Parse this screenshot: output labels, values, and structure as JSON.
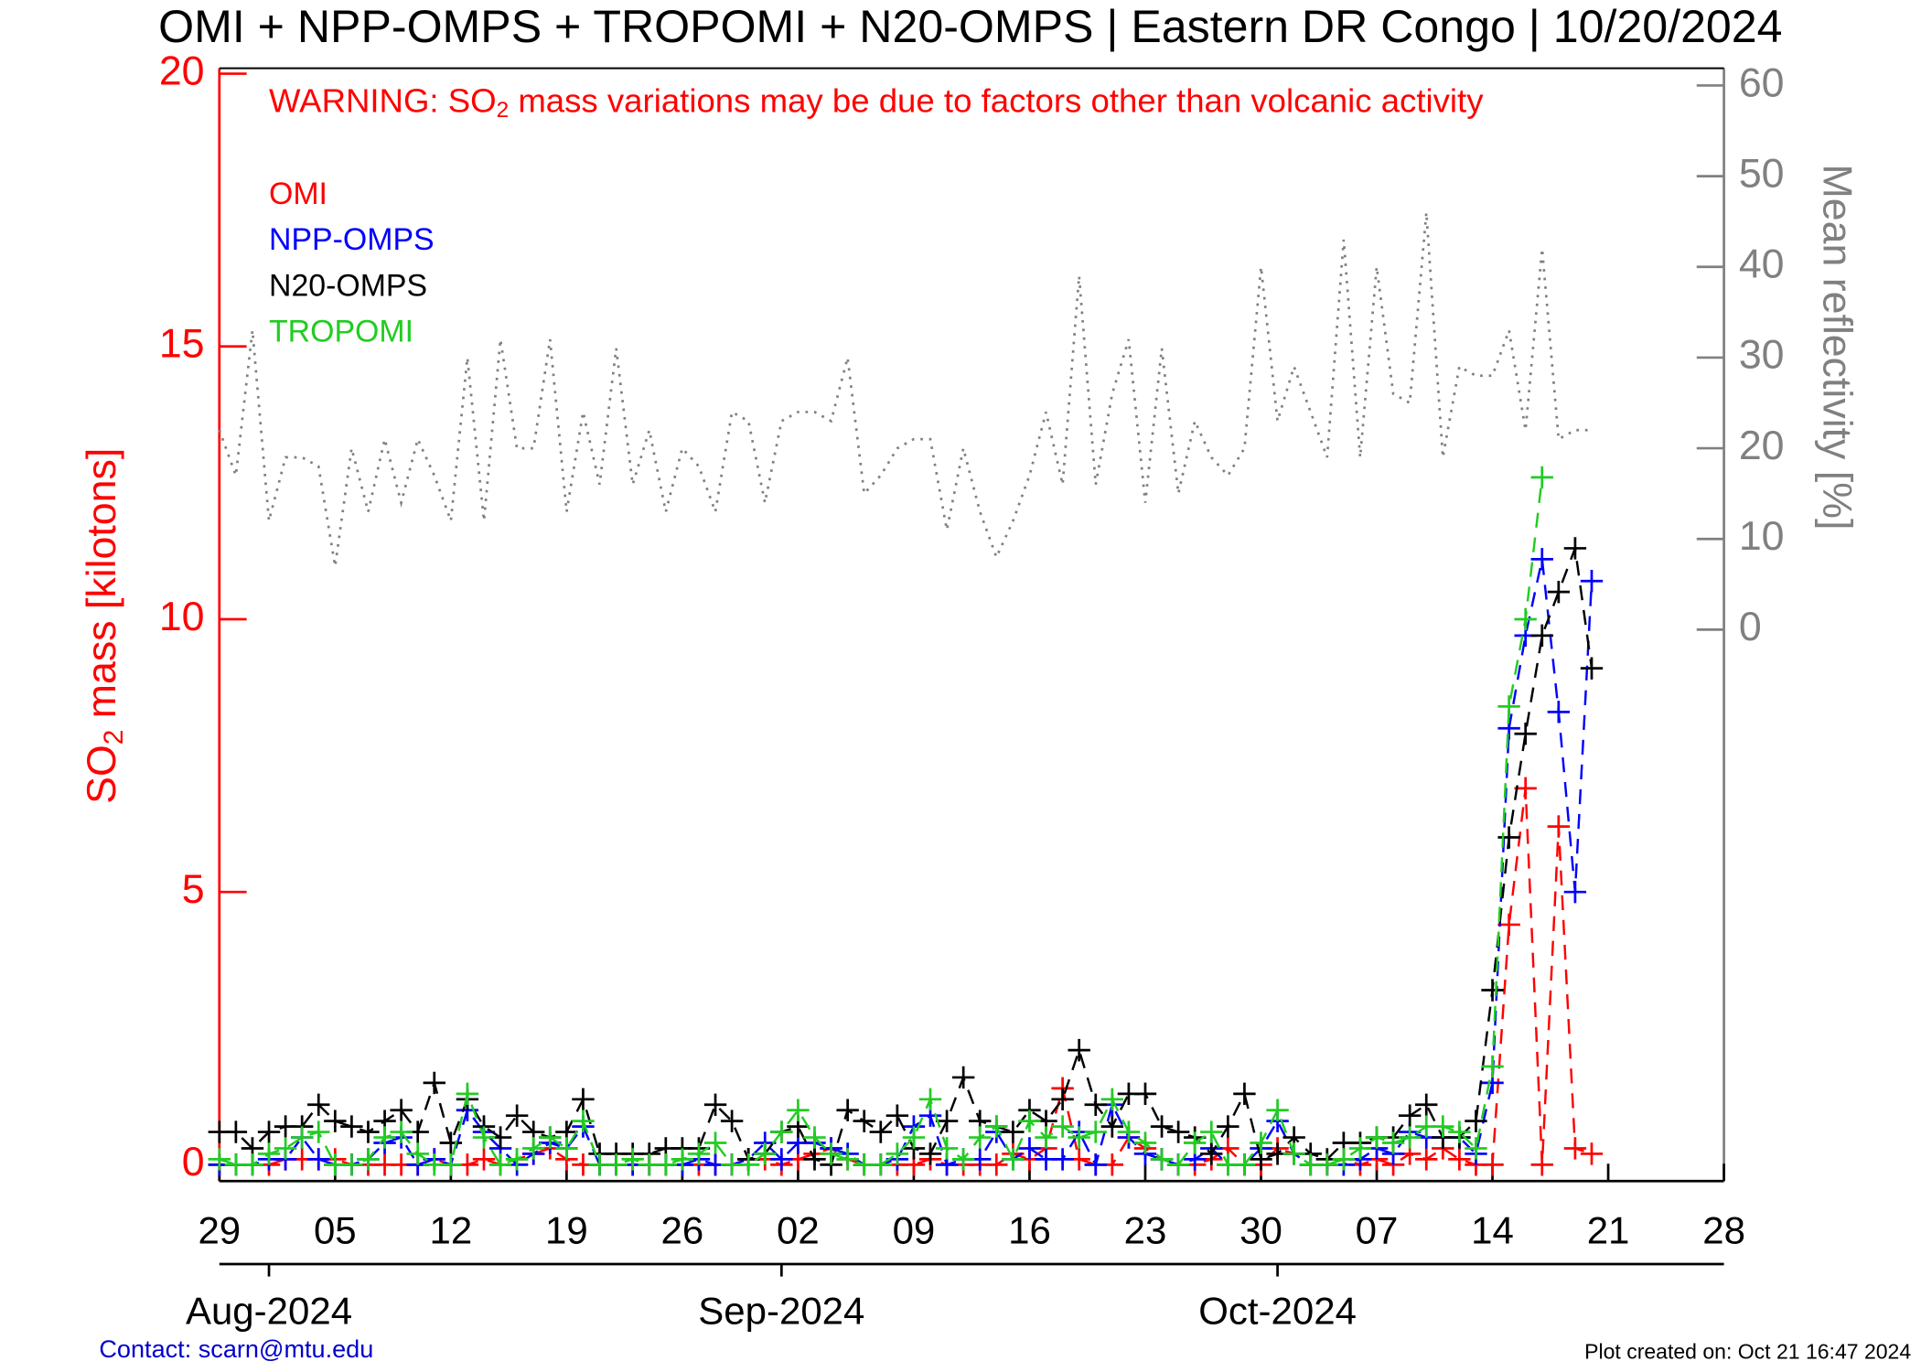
{
  "chart_data": {
    "type": "line",
    "title": "OMI + NPP-OMPS + TROPOMI + N20-OMPS | Eastern DR Congo | 10/20/2024",
    "warning": [
      "WARNING: SO",
      "2",
      " mass variations may be due to factors other than volcanic activity"
    ],
    "ylabel": [
      "SO",
      "2",
      " mass [kilotons]"
    ],
    "y2label": "Mean reflectivity [%]",
    "contact": "Contact: scarn@mtu.edu",
    "created": "Plot created on: Oct 21 16:47 2024",
    "x": [
      "2024-07-29",
      "2024-07-30",
      "2024-07-31",
      "2024-08-01",
      "2024-08-02",
      "2024-08-03",
      "2024-08-04",
      "2024-08-05",
      "2024-08-06",
      "2024-08-07",
      "2024-08-08",
      "2024-08-09",
      "2024-08-10",
      "2024-08-11",
      "2024-08-12",
      "2024-08-13",
      "2024-08-14",
      "2024-08-15",
      "2024-08-16",
      "2024-08-17",
      "2024-08-18",
      "2024-08-19",
      "2024-08-20",
      "2024-08-21",
      "2024-08-22",
      "2024-08-23",
      "2024-08-24",
      "2024-08-25",
      "2024-08-26",
      "2024-08-27",
      "2024-08-28",
      "2024-08-29",
      "2024-08-30",
      "2024-08-31",
      "2024-09-01",
      "2024-09-02",
      "2024-09-03",
      "2024-09-04",
      "2024-09-05",
      "2024-09-06",
      "2024-09-07",
      "2024-09-08",
      "2024-09-09",
      "2024-09-10",
      "2024-09-11",
      "2024-09-12",
      "2024-09-13",
      "2024-09-14",
      "2024-09-15",
      "2024-09-16",
      "2024-09-17",
      "2024-09-18",
      "2024-09-19",
      "2024-09-20",
      "2024-09-21",
      "2024-09-22",
      "2024-09-23",
      "2024-09-24",
      "2024-09-25",
      "2024-09-26",
      "2024-09-27",
      "2024-09-28",
      "2024-09-29",
      "2024-09-30",
      "2024-10-01",
      "2024-10-02",
      "2024-10-03",
      "2024-10-04",
      "2024-10-05",
      "2024-10-06",
      "2024-10-07",
      "2024-10-08",
      "2024-10-09",
      "2024-10-10",
      "2024-10-11",
      "2024-10-12",
      "2024-10-13",
      "2024-10-14",
      "2024-10-15",
      "2024-10-16",
      "2024-10-17",
      "2024-10-18",
      "2024-10-19",
      "2024-10-20"
    ],
    "series": [
      {
        "name": "OMI",
        "color": "#ff0000",
        "values": [
          0,
          0,
          0,
          0,
          0.1,
          0.1,
          0.1,
          0.1,
          0,
          0,
          0,
          0,
          0,
          0.1,
          0,
          0,
          0.1,
          0,
          0.1,
          0.2,
          0.3,
          0.1,
          0,
          0,
          0,
          0,
          0,
          0,
          0,
          0,
          0,
          0,
          0.1,
          0.1,
          0,
          0.1,
          0.2,
          0.3,
          0.1,
          0,
          0,
          0,
          0,
          0.1,
          0,
          0,
          0,
          0,
          0.2,
          0.1,
          0.3,
          1.4,
          0.1,
          0,
          0,
          0.5,
          0.3,
          0.1,
          0,
          0,
          0.1,
          0.3,
          0,
          0,
          0.3,
          0.2,
          0,
          0,
          0.1,
          0,
          0.1,
          0,
          0.2,
          0.1,
          0.3,
          0.1,
          0,
          0,
          4.4,
          6.9,
          0,
          6.2,
          0.3,
          0.2
        ]
      },
      {
        "name": "NPP-OMPS",
        "color": "#0000ff",
        "values": [
          0,
          0,
          0,
          0.1,
          0.1,
          0.5,
          0.1,
          0,
          0,
          0.1,
          0.4,
          0.5,
          0,
          0.1,
          0,
          1.0,
          0.6,
          0.3,
          0,
          0.2,
          0.4,
          0.3,
          0.7,
          0,
          0,
          0,
          0,
          0,
          0,
          0.1,
          0,
          0,
          0.1,
          0.4,
          0.1,
          0.4,
          0.4,
          0.3,
          0.2,
          0,
          0,
          0.1,
          0.7,
          0.9,
          0,
          0.1,
          0.1,
          0.6,
          0.1,
          0.3,
          0.1,
          0.1,
          0.6,
          0,
          1.1,
          0.5,
          0.2,
          0.1,
          0,
          0.1,
          0.3,
          0,
          0,
          0.3,
          0.8,
          0.2,
          0,
          0,
          0,
          0.1,
          0.3,
          0.2,
          0.6,
          0.5,
          0.5,
          0.5,
          0.2,
          1.5,
          8.0,
          9.7,
          11.1,
          8.3,
          5.0,
          10.7
        ]
      },
      {
        "name": "N20-OMPS",
        "color": "#000000",
        "values": [
          0.6,
          0.6,
          0.3,
          0.6,
          0.7,
          0.7,
          1.1,
          0.8,
          0.7,
          0.6,
          0.8,
          1.0,
          0.6,
          1.5,
          0.4,
          1.2,
          0.7,
          0.5,
          0.9,
          0.6,
          0.5,
          0.6,
          1.2,
          0.2,
          0.2,
          0.2,
          0.2,
          0.3,
          0.3,
          0.3,
          1.1,
          0.8,
          0.1,
          0.2,
          0.6,
          0.7,
          0.1,
          0,
          1.0,
          0.8,
          0.6,
          0.9,
          0.3,
          0.2,
          0.8,
          1.6,
          0.8,
          0.7,
          0.6,
          1.0,
          0.8,
          1.2,
          2.1,
          1.1,
          0.7,
          1.3,
          1.3,
          0.7,
          0.6,
          0.5,
          0.2,
          0.7,
          1.3,
          0.1,
          0.2,
          0.5,
          0.2,
          0.1,
          0.4,
          0.4,
          0.5,
          0.5,
          0.9,
          1.1,
          0.5,
          0.5,
          0.8,
          3.2,
          6.0,
          7.9,
          9.7,
          10.5,
          11.3,
          9.1
        ]
      },
      {
        "name": "TROPOMI",
        "color": "#22cc22",
        "values": [
          0.1,
          0,
          0,
          0.2,
          0.3,
          0.5,
          0.6,
          0,
          0,
          0.1,
          0.5,
          0.6,
          0.2,
          0,
          0,
          1.3,
          0.5,
          0,
          0.1,
          0.3,
          0.5,
          0.3,
          0.8,
          0,
          0,
          0.1,
          0,
          0,
          0.1,
          0.2,
          0.4,
          0,
          0,
          0.2,
          0.6,
          1.0,
          0.5,
          0.2,
          0.1,
          0,
          0,
          0.2,
          0.5,
          1.2,
          0.3,
          0.1,
          0.5,
          0.7,
          0.1,
          0.8,
          0.5,
          0.7,
          0.5,
          0.6,
          1.2,
          0.6,
          0.4,
          0.1,
          0,
          0.4,
          0.6,
          0,
          0,
          0.4,
          1.0,
          0.2,
          0,
          0,
          0.1,
          0.3,
          0.5,
          0.4,
          0.5,
          0.7,
          0.7,
          0.6,
          0.3,
          1.8,
          8.4,
          10.0,
          12.6,
          null,
          null,
          null
        ]
      }
    ],
    "reflectivity": {
      "axis": "y2",
      "color": "#808080",
      "values": [
        22,
        17,
        33,
        12,
        19,
        19,
        18,
        7,
        20,
        13,
        21,
        14,
        21,
        17,
        12,
        30,
        12,
        32,
        20,
        20,
        32,
        13,
        24,
        16,
        31,
        16,
        22,
        13,
        20,
        18,
        13,
        24,
        23,
        14,
        23,
        24,
        24,
        23,
        30,
        15,
        17,
        20,
        21,
        21,
        11,
        20,
        13,
        8,
        12,
        17,
        24,
        16,
        39,
        16,
        26,
        32,
        14,
        31,
        15,
        23,
        19,
        17,
        20,
        40,
        23,
        29,
        24,
        19,
        43,
        19,
        40,
        26,
        25,
        46,
        19,
        29,
        28,
        28,
        33,
        22,
        42,
        21,
        22,
        22
      ]
    },
    "xlim": [
      "2024-07-29",
      "2024-10-28"
    ],
    "xticks": [
      {
        "value": "2024-07-29",
        "label": "29"
      },
      {
        "value": "2024-08-05",
        "label": "05"
      },
      {
        "value": "2024-08-12",
        "label": "12"
      },
      {
        "value": "2024-08-19",
        "label": "19"
      },
      {
        "value": "2024-08-26",
        "label": "26"
      },
      {
        "value": "2024-09-02",
        "label": "02"
      },
      {
        "value": "2024-09-09",
        "label": "09"
      },
      {
        "value": "2024-09-16",
        "label": "16"
      },
      {
        "value": "2024-09-23",
        "label": "23"
      },
      {
        "value": "2024-09-30",
        "label": "30"
      },
      {
        "value": "2024-10-07",
        "label": "07"
      },
      {
        "value": "2024-10-14",
        "label": "14"
      },
      {
        "value": "2024-10-21",
        "label": "21"
      },
      {
        "value": "2024-10-28",
        "label": "28"
      }
    ],
    "month_ticks": [
      {
        "value": "2024-08-01",
        "label": "Aug-2024"
      },
      {
        "value": "2024-09-01",
        "label": "Sep-2024"
      },
      {
        "value": "2024-10-01",
        "label": "Oct-2024"
      }
    ],
    "ylim": [
      -0.3,
      20.1
    ],
    "yticks": [
      0,
      5,
      10,
      15,
      20
    ],
    "y2lim": [
      -60.8,
      61.9
    ],
    "y2ticks": [
      0,
      10,
      20,
      30,
      40,
      50,
      60
    ]
  }
}
